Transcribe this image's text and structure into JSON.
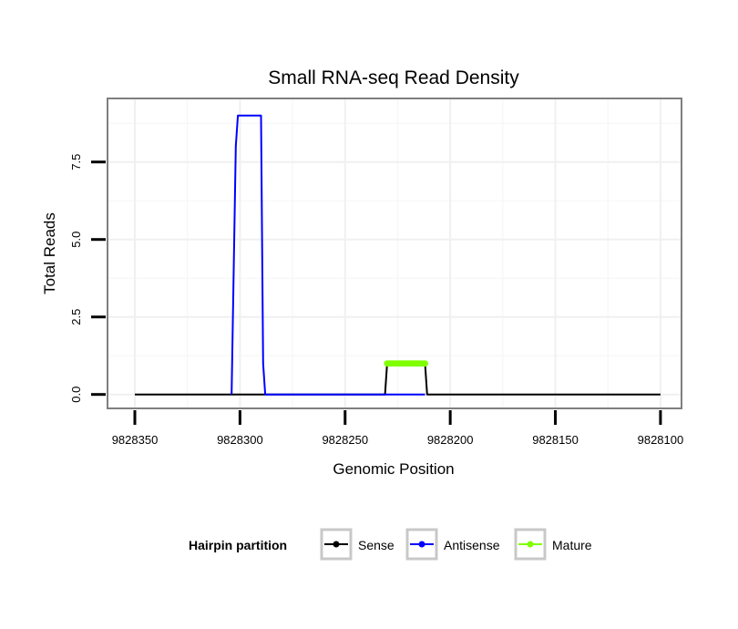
{
  "chart_data": {
    "type": "line",
    "title": "Small RNA-seq Read Density",
    "xlabel": "Genomic Position",
    "ylabel": "Total Reads",
    "xlim": [
      9828363,
      9828090
    ],
    "ylim": [
      -0.45,
      9.55
    ],
    "x_reversed": true,
    "grid": true,
    "x_ticks": [
      9828350,
      9828300,
      9828250,
      9828200,
      9828150,
      9828100
    ],
    "x_tick_labels": [
      "9828350",
      "9828300",
      "9828250",
      "9828200",
      "9828150",
      "9828100"
    ],
    "y_ticks": [
      0.0,
      2.5,
      5.0,
      7.5
    ],
    "y_tick_labels": [
      "0.0",
      "2.5",
      "5.0",
      "7.5"
    ],
    "legend": {
      "title": "Hairpin partition",
      "position": "bottom",
      "entries": [
        {
          "name": "Sense",
          "color": "#000000"
        },
        {
          "name": "Antisense",
          "color": "#0000ff"
        },
        {
          "name": "Mature",
          "color": "#7fff00"
        }
      ]
    },
    "series": [
      {
        "name": "Sense",
        "color": "#000000",
        "x": [
          9828350,
          9828231,
          9828230,
          9828212,
          9828211,
          9828100
        ],
        "y": [
          0,
          0,
          1,
          1,
          0,
          0
        ]
      },
      {
        "name": "Antisense",
        "color": "#0000ff",
        "x": [
          9828304,
          9828303,
          9828302,
          9828301,
          9828300,
          9828290,
          9828289,
          9828288,
          9828230,
          9828212
        ],
        "y": [
          0,
          4,
          8,
          9,
          9,
          9,
          1,
          0,
          0,
          0
        ]
      },
      {
        "name": "Mature",
        "color": "#7fff00",
        "markers": true,
        "x": [
          9828230,
          9828229,
          9828228,
          9828227,
          9828226,
          9828225,
          9828224,
          9828223,
          9828222,
          9828221,
          9828220,
          9828219,
          9828218,
          9828217,
          9828216,
          9828215,
          9828214,
          9828213,
          9828212
        ],
        "y": [
          1,
          1,
          1,
          1,
          1,
          1,
          1,
          1,
          1,
          1,
          1,
          1,
          1,
          1,
          1,
          1,
          1,
          1,
          1
        ]
      }
    ]
  }
}
